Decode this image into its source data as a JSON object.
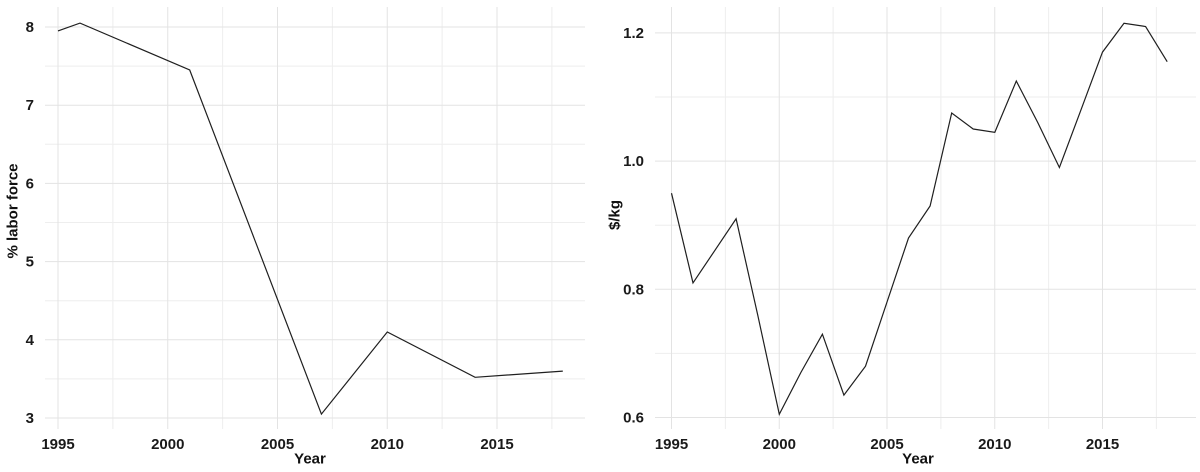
{
  "style": {
    "background": "#ffffff",
    "line_color": "#1f1f1f",
    "grid_major_color": "#e3e3e3",
    "grid_minor_color": "#eeeeee",
    "tick_label_color": "#1a1a1a",
    "axis_title_color": "#111111"
  },
  "chart_data": [
    {
      "type": "line",
      "title": "",
      "xlabel": "Year",
      "ylabel": "% labor force",
      "x": [
        1995,
        1996,
        2001,
        2007,
        2010,
        2014,
        2018
      ],
      "y": [
        7.95,
        8.05,
        7.45,
        3.05,
        4.1,
        3.52,
        3.6
      ],
      "x_ticks": [
        1995,
        2000,
        2005,
        2010,
        2015
      ],
      "x_tick_labels": [
        "1995",
        "2000",
        "2005",
        "2010",
        "2015"
      ],
      "x_minor_ticks": [
        1997.5,
        2002.5,
        2007.5,
        2012.5,
        2017.5
      ],
      "y_ticks": [
        3,
        4,
        5,
        6,
        7,
        8
      ],
      "y_tick_labels": [
        "3",
        "4",
        "5",
        "6",
        "7",
        "8"
      ],
      "y_minor_ticks": [
        3.5,
        4.5,
        5.5,
        6.5,
        7.5
      ],
      "xlim": [
        1994.4,
        2019.0
      ],
      "ylim": [
        2.86,
        8.26
      ],
      "grid": "major+minor",
      "legend": "none"
    },
    {
      "type": "line",
      "title": "",
      "xlabel": "Year",
      "ylabel": "$/kg",
      "x": [
        1995,
        1996,
        1997,
        1998,
        1999,
        2000,
        2001,
        2002,
        2003,
        2004,
        2005,
        2006,
        2007,
        2008,
        2009,
        2010,
        2011,
        2012,
        2013,
        2014,
        2015,
        2016,
        2017,
        2018
      ],
      "y": [
        0.95,
        0.81,
        0.86,
        0.91,
        0.76,
        0.605,
        0.67,
        0.73,
        0.635,
        0.68,
        0.78,
        0.88,
        0.93,
        1.075,
        1.05,
        1.045,
        1.125,
        1.06,
        0.99,
        1.08,
        1.17,
        1.215,
        1.21,
        1.155
      ],
      "x_ticks": [
        1995,
        2000,
        2005,
        2010,
        2015
      ],
      "x_tick_labels": [
        "1995",
        "2000",
        "2005",
        "2010",
        "2015"
      ],
      "x_minor_ticks": [
        1997.5,
        2002.5,
        2007.5,
        2012.5,
        2017.5
      ],
      "y_ticks": [
        0.6,
        0.8,
        1.0,
        1.2
      ],
      "y_tick_labels": [
        "0.6",
        "0.8",
        "1.0",
        "1.2"
      ],
      "y_minor_ticks": [
        0.7,
        0.9,
        1.1
      ],
      "xlim": [
        1994.2,
        2019.3
      ],
      "ylim": [
        0.58,
        1.24
      ],
      "grid": "major+minor",
      "legend": "none"
    }
  ]
}
